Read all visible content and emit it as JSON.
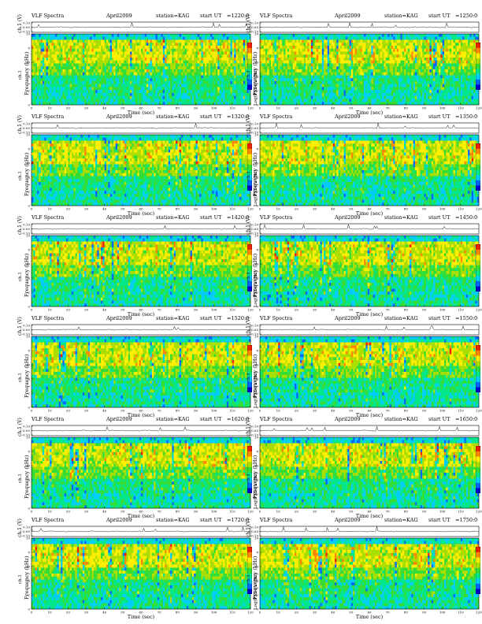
{
  "colors": {
    "palette": [
      "#0000cc",
      "#0066ff",
      "#00ccff",
      "#00e68a",
      "#33dd33",
      "#aadd00",
      "#ffee00",
      "#ff8800",
      "#ee2200"
    ],
    "trace": "#222222",
    "frame": "#000000"
  },
  "common": {
    "title": "VLF Spectra",
    "date": "April2009",
    "station": "station=KAG",
    "start_label": "start  UT",
    "ch1_ylabel": "ch.1 (V)",
    "freq_ylabel": "Frequency (kHz)",
    "freq_sub": "ch.1",
    "xlabel": "Time (sec)",
    "cbar_label": "Log(PSD)(V²/Hz)"
  },
  "panels": [
    {
      "ut": "=1220:0"
    },
    {
      "ut": "=1250:0"
    },
    {
      "ut": "=1320:0"
    },
    {
      "ut": "=1350:0"
    },
    {
      "ut": "=1420:0"
    },
    {
      "ut": "=1450:0"
    },
    {
      "ut": "=1520:0"
    },
    {
      "ut": "=1550:0"
    },
    {
      "ut": "=1620:0"
    },
    {
      "ut": "=1650:0"
    },
    {
      "ut": "=1720:0"
    },
    {
      "ut": "=1750:0"
    }
  ],
  "chart_data": {
    "type": "heatmap",
    "description_of_panels": "12 VLF spectrograms, 2 columns x 6 rows",
    "x_axis": {
      "label": "Time (sec)",
      "range": [
        0,
        120
      ],
      "ticks": [
        0,
        10,
        20,
        30,
        40,
        50,
        60,
        70,
        80,
        90,
        100,
        110,
        120
      ]
    },
    "y_axis": {
      "label": "Frequency (kHz)",
      "range": [
        0,
        10
      ],
      "ticks": [
        0,
        2,
        4,
        6,
        8,
        10
      ]
    },
    "ch1_axis": {
      "label": "ch.1 (V)",
      "range": [
        0,
        0.1
      ],
      "ticks": [
        "0.10",
        "0.00",
        "-0.10"
      ]
    },
    "colorbar": {
      "label": "Log(PSD)(V²/Hz)",
      "ticks": [
        ""
      ]
    },
    "grid": false
  }
}
